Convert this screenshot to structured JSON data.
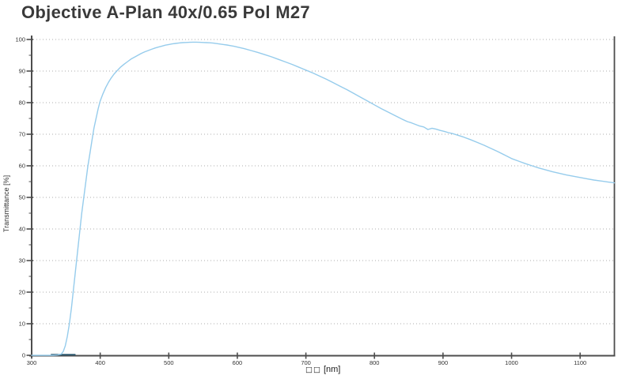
{
  "title": "Objective A-Plan 40x/0.65 Pol M27",
  "colors": {
    "axis": "#4d4d4d",
    "grid": "#aeaeae",
    "tick_text": "#333333",
    "curve": "#96ccec",
    "dark_segment": "#2e5a70"
  },
  "chart_data": {
    "type": "line",
    "title": "Objective A-Plan 40x/0.65 Pol M27",
    "xlabel_prefix": "□□",
    "xlabel": "[nm]",
    "ylabel": "Transmittance [%]",
    "xlim": [
      300,
      1150
    ],
    "ylim": [
      0,
      100
    ],
    "grid": true,
    "grid_style": "dotted-horizontal",
    "legend": "none",
    "xticks": [
      300,
      400,
      500,
      600,
      700,
      800,
      900,
      1000,
      1100
    ],
    "yticks": [
      0,
      10,
      20,
      30,
      40,
      50,
      60,
      70,
      80,
      90,
      100
    ],
    "series": [
      {
        "name": "transmittance",
        "color": "#96ccec",
        "points": [
          [
            300,
            0
          ],
          [
            308,
            0
          ],
          [
            316,
            0
          ],
          [
            324,
            0
          ],
          [
            332,
            0
          ],
          [
            338,
            0.1
          ],
          [
            343,
            0.4
          ],
          [
            346,
            1.2
          ],
          [
            349,
            3
          ],
          [
            352,
            6
          ],
          [
            355,
            10
          ],
          [
            358,
            15
          ],
          [
            361,
            21
          ],
          [
            364,
            27
          ],
          [
            367,
            33
          ],
          [
            370,
            39
          ],
          [
            373,
            45
          ],
          [
            376,
            50
          ],
          [
            379,
            55
          ],
          [
            382,
            60
          ],
          [
            385,
            64
          ],
          [
            388,
            68
          ],
          [
            391,
            72
          ],
          [
            394,
            75
          ],
          [
            397,
            78
          ],
          [
            400,
            80.5
          ],
          [
            404,
            82.8
          ],
          [
            408,
            84.8
          ],
          [
            412,
            86.4
          ],
          [
            416,
            87.8
          ],
          [
            420,
            89
          ],
          [
            425,
            90.2
          ],
          [
            430,
            91.3
          ],
          [
            435,
            92.2
          ],
          [
            440,
            93
          ],
          [
            445,
            93.8
          ],
          [
            450,
            94.4
          ],
          [
            455,
            95
          ],
          [
            460,
            95.6
          ],
          [
            465,
            96.1
          ],
          [
            470,
            96.5
          ],
          [
            475,
            96.9
          ],
          [
            480,
            97.3
          ],
          [
            485,
            97.6
          ],
          [
            490,
            97.9
          ],
          [
            495,
            98.2
          ],
          [
            500,
            98.4
          ],
          [
            505,
            98.6
          ],
          [
            510,
            98.75
          ],
          [
            515,
            98.9
          ],
          [
            520,
            99
          ],
          [
            525,
            99.05
          ],
          [
            530,
            99.1
          ],
          [
            535,
            99.15
          ],
          [
            540,
            99.15
          ],
          [
            545,
            99.1
          ],
          [
            550,
            99.05
          ],
          [
            555,
            99
          ],
          [
            560,
            98.95
          ],
          [
            565,
            98.85
          ],
          [
            570,
            98.7
          ],
          [
            575,
            98.55
          ],
          [
            580,
            98.4
          ],
          [
            585,
            98.25
          ],
          [
            590,
            98.05
          ],
          [
            595,
            97.85
          ],
          [
            600,
            97.6
          ],
          [
            610,
            97.1
          ],
          [
            620,
            96.5
          ],
          [
            630,
            95.9
          ],
          [
            640,
            95.2
          ],
          [
            650,
            94.5
          ],
          [
            660,
            93.7
          ],
          [
            670,
            92.9
          ],
          [
            680,
            92.1
          ],
          [
            690,
            91.2
          ],
          [
            700,
            90.3
          ],
          [
            710,
            89.4
          ],
          [
            720,
            88.4
          ],
          [
            730,
            87.4
          ],
          [
            740,
            86.3
          ],
          [
            750,
            85.2
          ],
          [
            760,
            84.1
          ],
          [
            770,
            82.9
          ],
          [
            780,
            81.7
          ],
          [
            790,
            80.5
          ],
          [
            800,
            79.3
          ],
          [
            810,
            78.1
          ],
          [
            820,
            77
          ],
          [
            830,
            75.9
          ],
          [
            840,
            74.8
          ],
          [
            848,
            74
          ],
          [
            854,
            73.6
          ],
          [
            860,
            73.1
          ],
          [
            866,
            72.6
          ],
          [
            872,
            72.3
          ],
          [
            878,
            71.5
          ],
          [
            884,
            71.9
          ],
          [
            890,
            71.6
          ],
          [
            896,
            71.2
          ],
          [
            902,
            70.9
          ],
          [
            908,
            70.5
          ],
          [
            914,
            70.2
          ],
          [
            920,
            69.8
          ],
          [
            930,
            69.1
          ],
          [
            940,
            68.3
          ],
          [
            950,
            67.4
          ],
          [
            960,
            66.5
          ],
          [
            970,
            65.5
          ],
          [
            980,
            64.5
          ],
          [
            990,
            63.4
          ],
          [
            1000,
            62.3
          ],
          [
            1010,
            61.5
          ],
          [
            1020,
            60.7
          ],
          [
            1030,
            60
          ],
          [
            1040,
            59.3
          ],
          [
            1050,
            58.7
          ],
          [
            1060,
            58.1
          ],
          [
            1070,
            57.6
          ],
          [
            1080,
            57.1
          ],
          [
            1090,
            56.7
          ],
          [
            1100,
            56.3
          ],
          [
            1110,
            55.9
          ],
          [
            1120,
            55.5
          ],
          [
            1130,
            55.2
          ],
          [
            1140,
            54.9
          ],
          [
            1150,
            54.6
          ]
        ]
      }
    ],
    "annotations": {
      "dark_segment": {
        "x_start": 328,
        "x_end": 364,
        "value": 0,
        "color": "#2e5a70"
      }
    }
  }
}
